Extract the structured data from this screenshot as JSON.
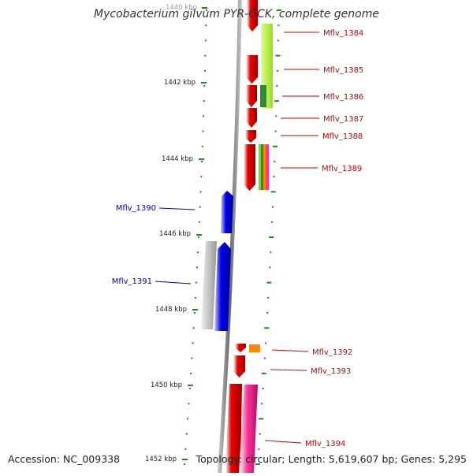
{
  "title": "Mycobacterium gilvum PYR-GCK, complete genome",
  "footer": {
    "accession": "Accession: NC_009338",
    "topology": "Topology: circular; Length: 5,619,607 bp; Genes: 5,295"
  },
  "colors": {
    "backbone": "#777777",
    "tick": "#228822",
    "forward_label": "#cc0000",
    "reverse_label": "#0000bb",
    "red_gene": "#ee0000",
    "blue_gene": "#0000ee",
    "grey_feature": "#bbbbbb",
    "lime_feature": "#bbff33",
    "green_feature": "#338833",
    "orange_feature": "#ff8800",
    "pink_feature": "#ff3399"
  },
  "bp_labels": [
    "1440 kbp",
    "1442 kbp",
    "1444 kbp",
    "1446 kbp",
    "1448 kbp",
    "1450 kbp",
    "1452 kbp"
  ],
  "genes": [
    {
      "label": "Mflv_1384",
      "strand": "forward"
    },
    {
      "label": "Mflv_1385",
      "strand": "forward"
    },
    {
      "label": "Mflv_1386",
      "strand": "forward"
    },
    {
      "label": "Mflv_1387",
      "strand": "forward"
    },
    {
      "label": "Mflv_1388",
      "strand": "forward"
    },
    {
      "label": "Mflv_1389",
      "strand": "forward"
    },
    {
      "label": "Mflv_1390",
      "strand": "reverse"
    },
    {
      "label": "Mflv_1391",
      "strand": "reverse"
    },
    {
      "label": "Mflv_1392",
      "strand": "forward"
    },
    {
      "label": "Mflv_1393",
      "strand": "forward"
    },
    {
      "label": "Mflv_1394",
      "strand": "forward"
    }
  ]
}
